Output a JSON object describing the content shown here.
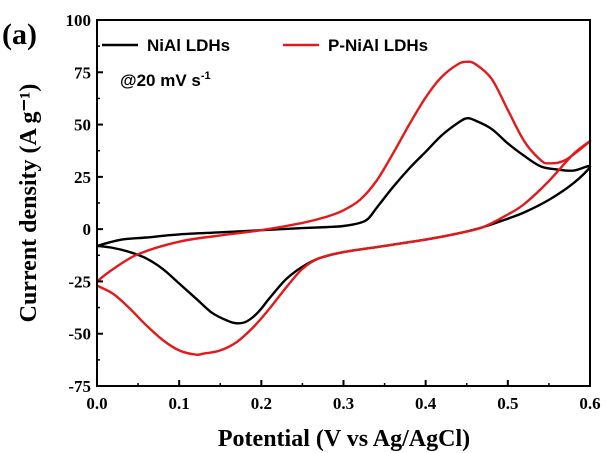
{
  "chart_data": {
    "type": "line",
    "panel_label": "(a)",
    "xlabel": "Potential (V vs Ag/AgCl)",
    "ylabel": "Current density (A g⁻¹)",
    "xlim": [
      0.0,
      0.6
    ],
    "ylim": [
      -75,
      100
    ],
    "x_ticks": [
      0.0,
      0.1,
      0.2,
      0.3,
      0.4,
      0.5,
      0.6
    ],
    "x_tick_labels": [
      "0.0",
      "0.1",
      "0.2",
      "0.3",
      "0.4",
      "0.5",
      "0.6"
    ],
    "y_ticks": [
      -75,
      -50,
      -25,
      0,
      25,
      50,
      75,
      100
    ],
    "y_tick_labels": [
      "-75",
      "-50",
      "-25",
      "0",
      "25",
      "50",
      "75",
      "100"
    ],
    "annotation": "@20 mV s",
    "annotation_sup": "-1",
    "grid": false,
    "legend_position": "top",
    "series": [
      {
        "name": "NiAl LDHs",
        "color": "#000000",
        "x": [
          0.0,
          0.03,
          0.06,
          0.1,
          0.15,
          0.2,
          0.25,
          0.28,
          0.3,
          0.32,
          0.33,
          0.34,
          0.36,
          0.38,
          0.4,
          0.42,
          0.44,
          0.45,
          0.46,
          0.48,
          0.5,
          0.52,
          0.54,
          0.56,
          0.58,
          0.6,
          0.58,
          0.55,
          0.52,
          0.5,
          0.47,
          0.44,
          0.4,
          0.35,
          0.3,
          0.27,
          0.25,
          0.23,
          0.21,
          0.2,
          0.19,
          0.18,
          0.17,
          0.16,
          0.14,
          0.12,
          0.1,
          0.08,
          0.06,
          0.04,
          0.02,
          0.0
        ],
        "y": [
          -8,
          -5,
          -4,
          -2.5,
          -1.5,
          -0.5,
          0.5,
          1,
          1.5,
          3,
          5,
          10,
          20,
          29,
          37,
          45,
          51,
          53,
          52,
          48,
          41,
          35,
          30,
          28.5,
          28,
          30,
          22,
          14,
          8,
          5,
          1,
          -2,
          -5,
          -8,
          -11,
          -14,
          -18,
          -24,
          -33,
          -38,
          -42,
          -44.5,
          -45,
          -44,
          -40,
          -33,
          -26,
          -19,
          -14,
          -11,
          -9,
          -8
        ]
      },
      {
        "name": "P-NiAl LDHs",
        "color": "#e31a1c",
        "x": [
          0.0,
          0.02,
          0.05,
          0.1,
          0.15,
          0.2,
          0.25,
          0.28,
          0.3,
          0.32,
          0.34,
          0.36,
          0.38,
          0.4,
          0.42,
          0.44,
          0.45,
          0.46,
          0.48,
          0.5,
          0.52,
          0.54,
          0.55,
          0.57,
          0.6,
          0.58,
          0.55,
          0.52,
          0.5,
          0.47,
          0.44,
          0.4,
          0.35,
          0.3,
          0.27,
          0.25,
          0.23,
          0.21,
          0.19,
          0.17,
          0.15,
          0.13,
          0.12,
          0.1,
          0.08,
          0.06,
          0.04,
          0.02,
          0.0
        ],
        "y": [
          -25,
          -19,
          -12,
          -6,
          -3,
          -0.5,
          3,
          6,
          9,
          14,
          23,
          36,
          50,
          63,
          73,
          79,
          80,
          79,
          72,
          57,
          42,
          33,
          31.5,
          33,
          42,
          36,
          23,
          12,
          7,
          1,
          -2,
          -5,
          -8,
          -11,
          -14,
          -19,
          -28,
          -38,
          -47,
          -54,
          -58,
          -59.5,
          -60,
          -58,
          -53,
          -46,
          -38,
          -31,
          -27
        ]
      }
    ]
  }
}
